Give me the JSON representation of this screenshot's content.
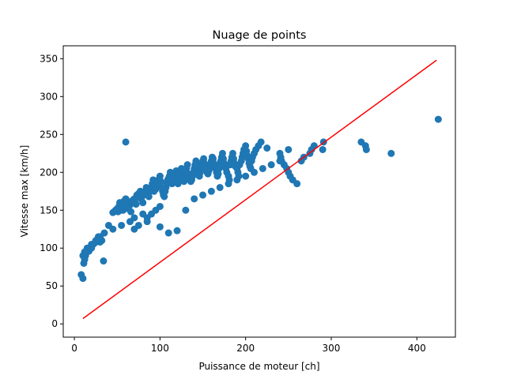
{
  "chart_data": {
    "type": "scatter",
    "title": "Nuage de points",
    "xlabel": "Puissance de moteur [ch]",
    "ylabel": "Vitesse max [km/h]",
    "xlim": [
      -13,
      445
    ],
    "ylim": [
      -17.5,
      367
    ],
    "xticks": [
      0,
      100,
      200,
      300,
      400
    ],
    "yticks": [
      0,
      50,
      100,
      150,
      200,
      250,
      300,
      350
    ],
    "grid": false,
    "legend": "none",
    "points_color": "#1f77b4",
    "line_color": "#ff0000",
    "series": [
      {
        "kind": "points",
        "x": [
          8,
          10,
          11,
          12,
          13,
          15,
          17,
          20,
          22,
          24,
          26,
          28,
          30,
          32,
          34,
          40,
          45,
          48,
          50,
          51,
          52,
          53,
          55,
          56,
          57,
          58,
          60,
          61,
          62,
          63,
          65,
          66,
          67,
          68,
          70,
          71,
          72,
          73,
          75,
          76,
          77,
          78,
          80,
          81,
          82,
          83,
          84,
          85,
          86,
          87,
          88,
          90,
          91,
          92,
          93,
          95,
          96,
          97,
          98,
          100,
          101,
          102,
          103,
          104,
          105,
          106,
          107,
          108,
          109,
          110,
          111,
          112,
          113,
          114,
          115,
          116,
          117,
          118,
          119,
          120,
          121,
          122,
          123,
          124,
          125,
          126,
          127,
          128,
          129,
          130,
          131,
          132,
          133,
          134,
          135,
          136,
          137,
          138,
          139,
          140,
          141,
          142,
          143,
          144,
          145,
          146,
          147,
          148,
          149,
          150,
          151,
          152,
          153,
          154,
          155,
          156,
          157,
          158,
          159,
          160,
          161,
          162,
          163,
          164,
          165,
          166,
          167,
          168,
          169,
          170,
          171,
          172,
          173,
          174,
          175,
          176,
          177,
          178,
          180,
          181,
          182,
          183,
          184,
          185,
          186,
          187,
          188,
          190,
          191,
          192,
          193,
          195,
          196,
          197,
          198,
          200,
          201,
          202,
          203,
          204,
          205,
          206,
          207,
          208,
          210,
          212,
          215,
          218,
          225,
          240,
          241,
          242,
          245,
          248,
          250,
          252,
          255,
          260,
          265,
          268,
          275,
          277,
          280,
          290,
          291,
          335,
          340,
          341,
          370,
          425,
          60,
          60,
          70,
          75,
          85,
          100,
          110,
          120,
          130,
          140,
          150,
          160,
          170,
          180,
          190,
          200,
          210,
          220,
          230,
          240,
          250,
          85,
          90,
          95,
          100,
          80,
          70,
          65,
          55,
          45,
          35,
          30,
          25,
          20,
          15,
          12,
          10
        ],
        "y": [
          65,
          60,
          80,
          85,
          90,
          95,
          96,
          100,
          105,
          107,
          110,
          115,
          108,
          110,
          83,
          130,
          147,
          150,
          152,
          148,
          155,
          160,
          150,
          158,
          150,
          162,
          165,
          155,
          160,
          152,
          157,
          148,
          162,
          163,
          165,
          160,
          158,
          170,
          172,
          168,
          175,
          165,
          160,
          170,
          172,
          175,
          180,
          178,
          170,
          168,
          175,
          180,
          185,
          190,
          175,
          178,
          182,
          185,
          190,
          195,
          188,
          180,
          175,
          170,
          168,
          175,
          180,
          185,
          190,
          192,
          195,
          200,
          188,
          185,
          190,
          195,
          198,
          200,
          202,
          188,
          185,
          190,
          195,
          200,
          205,
          198,
          192,
          188,
          195,
          200,
          205,
          210,
          198,
          195,
          192,
          188,
          190,
          195,
          200,
          205,
          210,
          215,
          212,
          205,
          200,
          195,
          200,
          205,
          210,
          215,
          218,
          212,
          208,
          205,
          200,
          198,
          202,
          205,
          210,
          215,
          220,
          218,
          212,
          208,
          205,
          200,
          195,
          198,
          205,
          210,
          215,
          220,
          225,
          218,
          212,
          208,
          205,
          200,
          195,
          190,
          210,
          215,
          220,
          225,
          218,
          212,
          208,
          205,
          200,
          195,
          210,
          215,
          220,
          225,
          230,
          235,
          228,
          222,
          218,
          212,
          208,
          205,
          215,
          220,
          225,
          230,
          235,
          240,
          232,
          225,
          220,
          215,
          210,
          205,
          200,
          195,
          190,
          185,
          215,
          220,
          225,
          230,
          235,
          230,
          240,
          240,
          235,
          230,
          225,
          270,
          240,
          155,
          125,
          130,
          140,
          128,
          120,
          123,
          150,
          165,
          170,
          175,
          180,
          185,
          190,
          195,
          200,
          205,
          210,
          215,
          230,
          135,
          145,
          150,
          155,
          145,
          140,
          135,
          130,
          125,
          120,
          115,
          110,
          105,
          100,
          95,
          90
        ]
      },
      {
        "kind": "line",
        "x": [
          10,
          423
        ],
        "y": [
          7,
          348
        ]
      }
    ]
  }
}
